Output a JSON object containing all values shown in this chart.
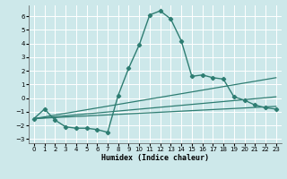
{
  "xlabel": "Humidex (Indice chaleur)",
  "background_color": "#cde8ea",
  "grid_color": "#ffffff",
  "line_color": "#2e7d72",
  "xlim": [
    -0.5,
    23.5
  ],
  "ylim": [
    -3.3,
    6.8
  ],
  "xticks": [
    0,
    1,
    2,
    3,
    4,
    5,
    6,
    7,
    8,
    9,
    10,
    11,
    12,
    13,
    14,
    15,
    16,
    17,
    18,
    19,
    20,
    21,
    22,
    23
  ],
  "yticks": [
    -3,
    -2,
    -1,
    0,
    1,
    2,
    3,
    4,
    5,
    6
  ],
  "main_x": [
    0,
    1,
    2,
    3,
    4,
    5,
    6,
    7,
    8,
    9,
    10,
    11,
    12,
    13,
    14,
    15,
    16,
    17,
    18,
    19,
    20,
    21,
    22,
    23
  ],
  "main_y": [
    -1.5,
    -0.8,
    -1.6,
    -2.1,
    -2.2,
    -2.2,
    -2.3,
    -2.5,
    0.2,
    2.2,
    3.9,
    6.1,
    6.4,
    5.8,
    4.2,
    1.6,
    1.7,
    1.5,
    1.4,
    0.1,
    -0.15,
    -0.5,
    -0.7,
    -0.8
  ],
  "trend1_x": [
    0,
    23
  ],
  "trend1_y": [
    -1.5,
    1.5
  ],
  "trend2_x": [
    0,
    23
  ],
  "trend2_y": [
    -1.5,
    0.1
  ],
  "trend3_x": [
    0,
    23
  ],
  "trend3_y": [
    -1.5,
    -0.6
  ]
}
